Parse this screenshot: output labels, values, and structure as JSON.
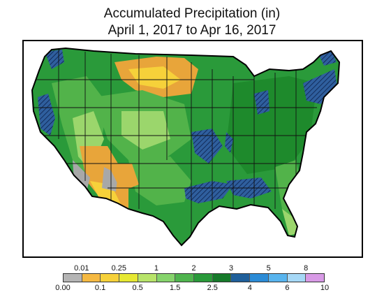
{
  "title": {
    "line1": "Accumulated Precipitation (in)",
    "line2": "April 1, 2017 to Apr 16, 2017"
  },
  "map": {
    "subject": "contiguous-united-states",
    "colors": {
      "dry": "#e8a53a",
      "low": "#f6d13a",
      "light_green": "#9bd66c",
      "green": "#52b34a",
      "dark_green": "#1e8a2c",
      "wet_blue": "#2f5f9e",
      "trace": "#a8a8a8",
      "border": "#111111",
      "background": "#ffffff"
    }
  },
  "legend": {
    "swatches": [
      {
        "color": "#b4b4b4"
      },
      {
        "color": "#f5b942"
      },
      {
        "color": "#f6d13a"
      },
      {
        "color": "#e6e832"
      },
      {
        "color": "#b8e46a"
      },
      {
        "color": "#86d46c"
      },
      {
        "color": "#4fb44e"
      },
      {
        "color": "#2a9a3a"
      },
      {
        "color": "#167a2a"
      },
      {
        "color": "#1f5f9a"
      },
      {
        "color": "#2b8bd6"
      },
      {
        "color": "#58b4ee"
      },
      {
        "color": "#a6d8f6"
      },
      {
        "color": "#d89ae6"
      }
    ],
    "top_labels": [
      "0.01",
      "0.25",
      "1",
      "2",
      "3",
      "5",
      "8"
    ],
    "bottom_labels": [
      "0.00",
      "0.1",
      "0.5",
      "1.5",
      "2.5",
      "4",
      "6",
      "10"
    ]
  }
}
